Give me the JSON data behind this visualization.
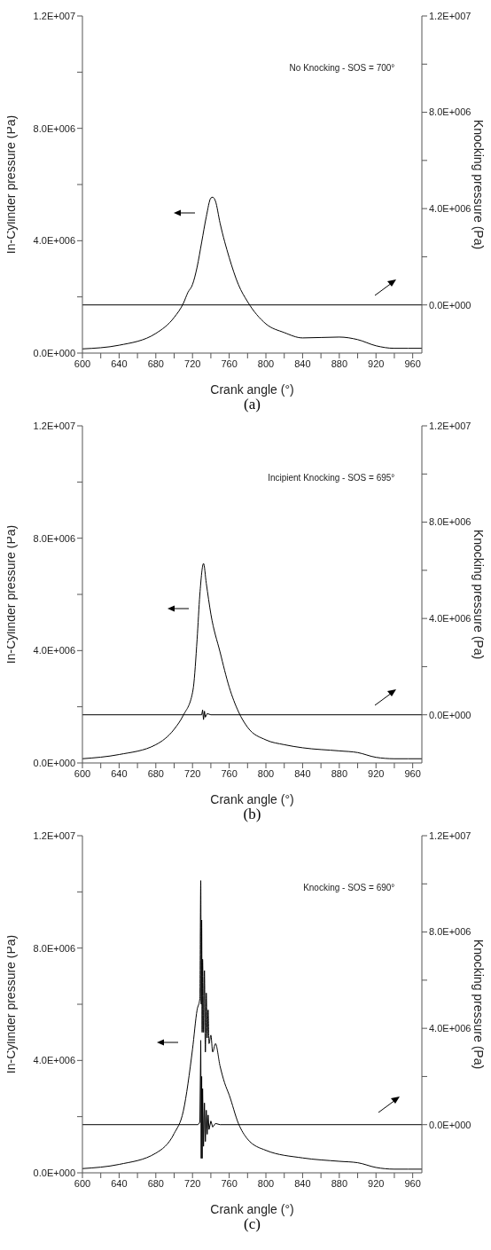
{
  "chart_data": [
    {
      "type": "line",
      "xlabel": "Crank angle (°)",
      "ylabel": "In-Cylinder pressure (Pa)",
      "y2label": "Knocking pressure (Pa)",
      "annotations": [
        "No Knocking - SOS = 700°",
        "(a)"
      ],
      "xlim": [
        600,
        970
      ],
      "xticks": [
        600,
        {
          "value": 620,
          "label": null
        },
        640,
        {
          "value": 660,
          "label": null
        },
        680,
        {
          "value": 700,
          "label": null
        },
        720,
        {
          "value": 740,
          "label": null
        },
        760,
        {
          "value": 780,
          "label": null
        },
        800,
        {
          "value": 820,
          "label": null
        },
        840,
        {
          "value": 860,
          "label": null
        },
        880,
        {
          "value": 900,
          "label": null
        },
        920,
        {
          "value": 940,
          "label": null
        },
        960
      ],
      "ylim": [
        0,
        12000000
      ],
      "yticks": [
        {
          "value": 0,
          "label": "0.0E+000"
        },
        {
          "value": 2000000,
          "label": null
        },
        {
          "value": 4000000,
          "label": "4.0E+006"
        },
        {
          "value": 6000000,
          "label": null
        },
        {
          "value": 8000000,
          "label": "8.0E+006"
        },
        {
          "value": 10000000,
          "label": null
        },
        {
          "value": 12000000,
          "label": "1.2E+007"
        }
      ],
      "y2lim": [
        -2000000,
        12000000
      ],
      "y2ticks": [
        {
          "value": 0,
          "label": "0.0E+000"
        },
        {
          "value": 2000000,
          "label": null
        },
        {
          "value": 4000000,
          "label": "4.0E+006"
        },
        {
          "value": 6000000,
          "label": null
        },
        {
          "value": 8000000,
          "label": "8.0E+006"
        },
        {
          "value": 10000000,
          "label": null
        },
        {
          "value": 12000000,
          "label": "1.2E+007"
        }
      ],
      "series": [
        {
          "color": "#000000",
          "x": [
            600,
            640,
            680,
            700,
            710,
            715,
            720,
            725,
            730,
            735,
            740,
            742,
            745,
            750,
            760,
            770,
            780,
            800,
            820,
            840,
            880,
            900,
            920,
            940,
            970
          ],
          "values": [
            150000,
            280000,
            700000,
            1270000,
            1770000,
            2160000,
            2440000,
            3060000,
            3950000,
            4850000,
            5520000,
            5550000,
            5410000,
            4630000,
            3400000,
            2440000,
            1830000,
            1040000,
            730000,
            540000,
            570000,
            480000,
            260000,
            170000,
            170000
          ]
        },
        {
          "color": "#000000",
          "axis": "y2",
          "x": [
            600,
            970
          ],
          "values": [
            0,
            0
          ]
        }
      ]
    },
    {
      "type": "line",
      "xlabel": "Crank angle (°)",
      "ylabel": "In-Cylinder pressure (Pa)",
      "y2label": "Knocking pressure (Pa)",
      "annotations": [
        "Incipient Knocking - SOS = 695°",
        "(b)"
      ],
      "xlim": [
        600,
        970
      ],
      "xticks": [
        600,
        {
          "value": 620,
          "label": null
        },
        640,
        {
          "value": 660,
          "label": null
        },
        680,
        {
          "value": 700,
          "label": null
        },
        720,
        {
          "value": 740,
          "label": null
        },
        760,
        {
          "value": 780,
          "label": null
        },
        800,
        {
          "value": 820,
          "label": null
        },
        840,
        {
          "value": 860,
          "label": null
        },
        880,
        {
          "value": 900,
          "label": null
        },
        920,
        {
          "value": 940,
          "label": null
        },
        960
      ],
      "ylim": [
        0,
        12000000
      ],
      "yticks": [
        {
          "value": 0,
          "label": "0.0E+000"
        },
        {
          "value": 2000000,
          "label": null
        },
        {
          "value": 4000000,
          "label": "4.0E+006"
        },
        {
          "value": 6000000,
          "label": null
        },
        {
          "value": 8000000,
          "label": "8.0E+006"
        },
        {
          "value": 10000000,
          "label": null
        },
        {
          "value": 12000000,
          "label": "1.2E+007"
        }
      ],
      "y2lim": [
        -2000000,
        12000000
      ],
      "y2ticks": [
        {
          "value": 0,
          "label": "0.0E+000"
        },
        {
          "value": 2000000,
          "label": null
        },
        {
          "value": 4000000,
          "label": "4.0E+006"
        },
        {
          "value": 6000000,
          "label": null
        },
        {
          "value": 8000000,
          "label": "8.0E+006"
        },
        {
          "value": 10000000,
          "label": null
        },
        {
          "value": 12000000,
          "label": "1.2E+007"
        }
      ],
      "series": [
        {
          "color": "#000000",
          "x": [
            600,
            640,
            680,
            700,
            710,
            720,
            721,
            725,
            728,
            732,
            735,
            740,
            750,
            760,
            770,
            780,
            800,
            820,
            840,
            880,
            900,
            920,
            940,
            970
          ],
          "values": [
            150000,
            300000,
            650000,
            1200000,
            1700000,
            2500000,
            2700000,
            4400000,
            6000000,
            7100000,
            6400000,
            5300000,
            3950000,
            2700000,
            1830000,
            1270000,
            820000,
            650000,
            540000,
            430000,
            370000,
            200000,
            150000,
            150000
          ]
        },
        {
          "color": "#000000",
          "axis": "y2",
          "x": [
            600,
            730,
            731,
            732,
            733,
            734,
            736,
            740,
            970
          ],
          "values": [
            0,
            0,
            200000,
            -200000,
            150000,
            -100000,
            50000,
            0,
            0
          ]
        }
      ]
    },
    {
      "type": "line",
      "xlabel": "Crank angle (°)",
      "ylabel": "In-Cylinder pressure (Pa)",
      "y2label": "Knocking pressure (Pa)",
      "annotations": [
        "Knocking - SOS = 690°",
        "(c)"
      ],
      "xlim": [
        600,
        970
      ],
      "xticks": [
        600,
        {
          "value": 620,
          "label": null
        },
        640,
        {
          "value": 660,
          "label": null
        },
        680,
        {
          "value": 700,
          "label": null
        },
        720,
        {
          "value": 740,
          "label": null
        },
        760,
        {
          "value": 780,
          "label": null
        },
        800,
        {
          "value": 820,
          "label": null
        },
        840,
        {
          "value": 860,
          "label": null
        },
        880,
        {
          "value": 900,
          "label": null
        },
        920,
        {
          "value": 940,
          "label": null
        },
        960
      ],
      "ylim": [
        0,
        12000000
      ],
      "yticks": [
        {
          "value": 0,
          "label": "0.0E+000"
        },
        {
          "value": 2000000,
          "label": null
        },
        {
          "value": 4000000,
          "label": "4.0E+006"
        },
        {
          "value": 6000000,
          "label": null
        },
        {
          "value": 8000000,
          "label": "8.0E+006"
        },
        {
          "value": 10000000,
          "label": null
        },
        {
          "value": 12000000,
          "label": "1.2E+007"
        }
      ],
      "y2lim": [
        -2000000,
        12000000
      ],
      "y2ticks": [
        {
          "value": 0,
          "label": "0.0E+000"
        },
        {
          "value": 2000000,
          "label": null
        },
        {
          "value": 4000000,
          "label": "4.0E+006"
        },
        {
          "value": 6000000,
          "label": null
        },
        {
          "value": 8000000,
          "label": "8.0E+006"
        },
        {
          "value": 10000000,
          "label": null
        },
        {
          "value": 12000000,
          "label": "1.2E+007"
        }
      ],
      "series": [
        {
          "color": "#000000",
          "x": [
            600,
            640,
            680,
            700,
            710,
            720,
            725,
            728,
            729,
            729.5,
            730,
            730.5,
            731,
            732,
            733,
            734,
            735,
            736,
            737,
            738,
            740,
            742,
            745,
            750,
            755,
            760,
            770,
            780,
            800,
            840,
            880,
            900,
            920,
            940,
            970
          ],
          "values": [
            150000,
            300000,
            700000,
            1400000,
            2200000,
            4400000,
            5800000,
            6200000,
            10400000,
            6000000,
            9000000,
            5000000,
            7600000,
            5000000,
            7200000,
            4300000,
            6400000,
            4800000,
            5800000,
            4600000,
            4900000,
            4300000,
            4600000,
            3800000,
            3200000,
            2770000,
            1760000,
            1200000,
            800000,
            530000,
            410000,
            360000,
            190000,
            130000,
            130000
          ]
        },
        {
          "color": "#000000",
          "axis": "y2",
          "x": [
            600,
            726,
            728,
            729,
            729.5,
            730,
            730.5,
            731,
            732,
            733,
            734,
            735,
            736,
            737,
            738,
            740,
            742,
            745,
            750,
            970
          ],
          "values": [
            0,
            0,
            100000,
            3500000,
            -1400000,
            2000000,
            -1400000,
            1500000,
            -900000,
            900000,
            -700000,
            600000,
            -400000,
            400000,
            -200000,
            150000,
            -100000,
            50000,
            0,
            0
          ]
        }
      ]
    }
  ]
}
